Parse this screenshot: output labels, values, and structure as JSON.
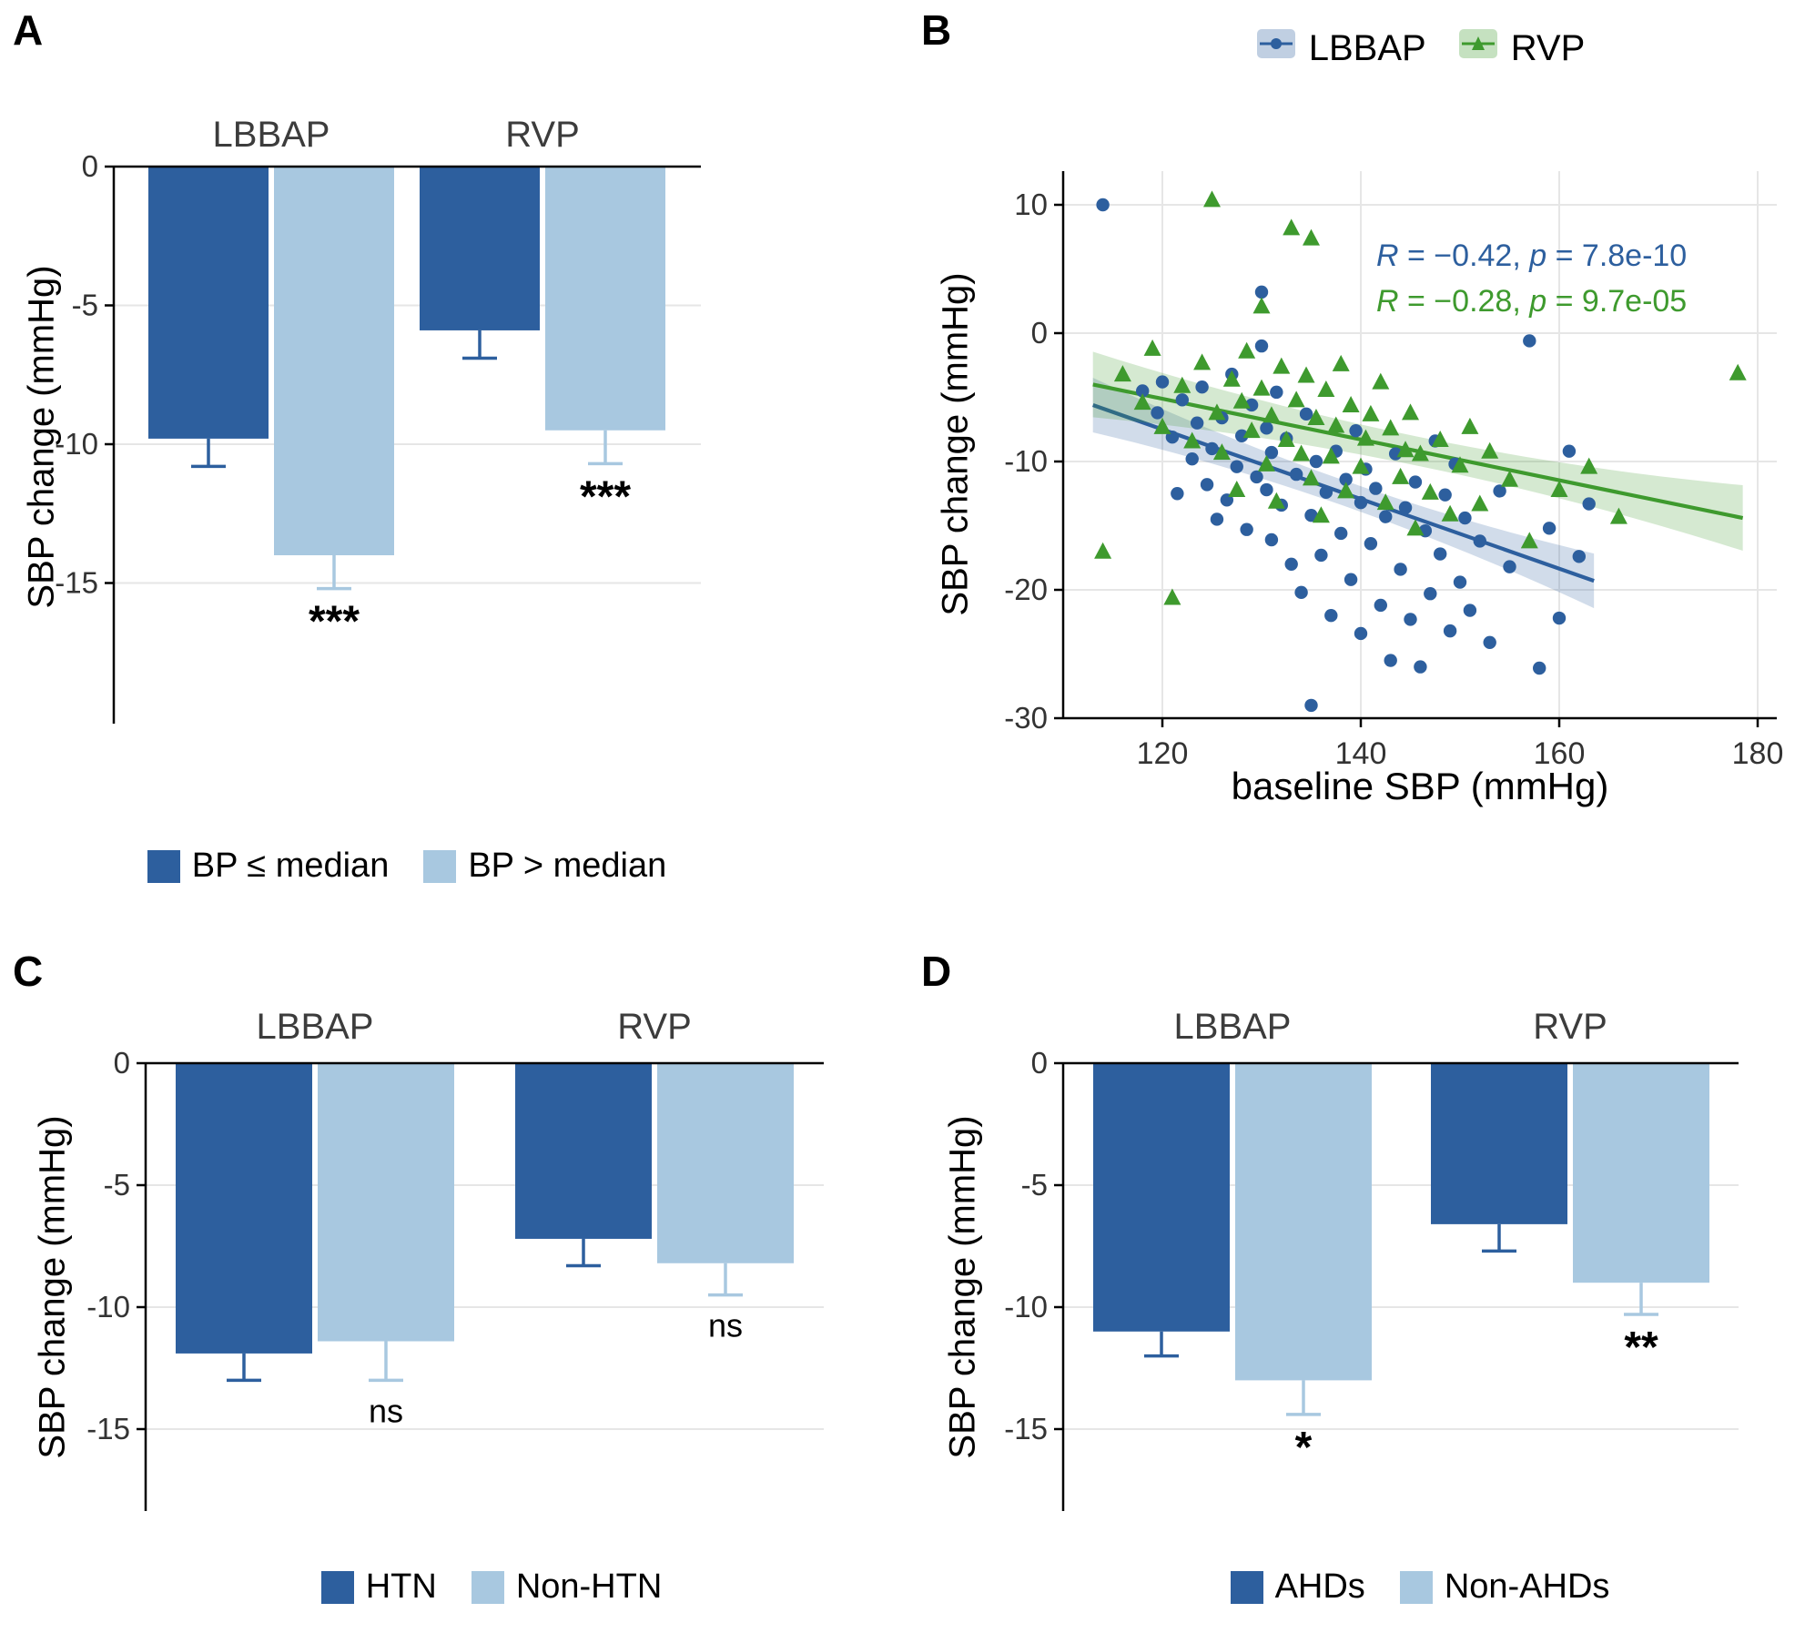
{
  "figure": {
    "colors": {
      "dark_blue": "#2D5F9E",
      "light_blue": "#A8C8E0",
      "green": "#3E9A2E",
      "grid": "#E6E6E6",
      "axis": "#000000",
      "facet_text": "#3C3C3C",
      "tick_text": "#333333"
    }
  },
  "chart_data": [
    {
      "type": "bar",
      "panel_label": "A",
      "ylabel": "SBP change (mmHg)",
      "ylim": [
        0,
        -20
      ],
      "yticks": [
        0,
        -5,
        -10,
        -15
      ],
      "groups": [
        "LBBAP",
        "RVP"
      ],
      "series": [
        {
          "name": "BP ≤ median",
          "color": "#2D5F9E"
        },
        {
          "name": "BP > median",
          "color": "#A8C8E0"
        }
      ],
      "values": [
        [
          -9.8,
          -14.0
        ],
        [
          -5.9,
          -9.5
        ]
      ],
      "errors": [
        [
          1.0,
          1.2
        ],
        [
          1.0,
          1.2
        ]
      ],
      "significance": [
        [
          null,
          "***"
        ],
        [
          null,
          "***"
        ]
      ]
    },
    {
      "type": "scatter",
      "panel_label": "B",
      "xlabel": "baseline SBP (mmHg)",
      "ylabel": "SBP change (mmHg)",
      "xlim": [
        110,
        182
      ],
      "ylim": [
        12.5,
        -30.5
      ],
      "xticks": [
        120,
        140,
        160,
        180
      ],
      "yticks": [
        10,
        0,
        -10,
        -20,
        -30
      ],
      "legend_position": "top",
      "series": [
        {
          "name": "LBBAP",
          "marker": "circle",
          "color": "#2D5F9E",
          "annotation": {
            "r_label": "R",
            "r_text": " = −0.42, ",
            "p_label": "p",
            "p_text": " = 7.8e-10"
          },
          "regression": {
            "x1": 113,
            "y1": -5.6,
            "x2": 163.5,
            "y2": -19.3
          },
          "band": {
            "base": 14,
            "amp": 16
          },
          "points": [
            [
              114,
              10
            ],
            [
              118,
              -4.5
            ],
            [
              119.5,
              -6.2
            ],
            [
              120,
              -3.8
            ],
            [
              121,
              -8.1
            ],
            [
              121.5,
              -12.5
            ],
            [
              122,
              -5.2
            ],
            [
              123,
              -9.8
            ],
            [
              123.5,
              -7
            ],
            [
              124,
              -4.2
            ],
            [
              124.5,
              -11.8
            ],
            [
              125,
              -9
            ],
            [
              125.5,
              -14.5
            ],
            [
              126,
              -6.6
            ],
            [
              126.5,
              -13
            ],
            [
              127,
              -3.2
            ],
            [
              127.5,
              -10.4
            ],
            [
              128,
              -8
            ],
            [
              128.5,
              -15.3
            ],
            [
              129,
              -5.6
            ],
            [
              129.5,
              -11.2
            ],
            [
              130,
              3.2
            ],
            [
              130,
              -1
            ],
            [
              130.5,
              -7.4
            ],
            [
              130.5,
              -12.2
            ],
            [
              131,
              -9.3
            ],
            [
              131,
              -16.1
            ],
            [
              131.5,
              -4.6
            ],
            [
              132,
              -13.4
            ],
            [
              132.5,
              -8.2
            ],
            [
              133,
              -18
            ],
            [
              133.5,
              -11
            ],
            [
              134,
              -20.2
            ],
            [
              134.5,
              -6.3
            ],
            [
              135,
              -14.2
            ],
            [
              135,
              -29
            ],
            [
              135.5,
              -10
            ],
            [
              136,
              -17.3
            ],
            [
              136.5,
              -12.4
            ],
            [
              137,
              -22
            ],
            [
              137.5,
              -9.2
            ],
            [
              138,
              -15.6
            ],
            [
              138.5,
              -11.4
            ],
            [
              139,
              -19.2
            ],
            [
              139.5,
              -7.6
            ],
            [
              140,
              -13.2
            ],
            [
              140,
              -23.4
            ],
            [
              140.5,
              -10.6
            ],
            [
              141,
              -16.4
            ],
            [
              141.5,
              -12.1
            ],
            [
              142,
              -21.2
            ],
            [
              142.5,
              -14.3
            ],
            [
              143,
              -25.5
            ],
            [
              143.5,
              -9.4
            ],
            [
              144,
              -18.4
            ],
            [
              144.5,
              -13.6
            ],
            [
              145,
              -22.3
            ],
            [
              145.5,
              -11.6
            ],
            [
              146,
              -26
            ],
            [
              146.5,
              -15.4
            ],
            [
              147,
              -20.3
            ],
            [
              147.5,
              -8.4
            ],
            [
              148,
              -17.2
            ],
            [
              148.5,
              -12.6
            ],
            [
              149,
              -23.2
            ],
            [
              149.5,
              -10.2
            ],
            [
              150,
              -19.4
            ],
            [
              150.5,
              -14.4
            ],
            [
              151,
              -21.6
            ],
            [
              152,
              -16.2
            ],
            [
              153,
              -24.1
            ],
            [
              154,
              -12.3
            ],
            [
              155,
              -18.2
            ],
            [
              157,
              -0.6
            ],
            [
              158,
              -26.1
            ],
            [
              159,
              -15.2
            ],
            [
              160,
              -22.2
            ],
            [
              161,
              -9.2
            ],
            [
              162,
              -17.4
            ],
            [
              163,
              -13.3
            ]
          ]
        },
        {
          "name": "RVP",
          "marker": "triangle",
          "color": "#3E9A2E",
          "annotation": {
            "r_label": "R",
            "r_text": " = −0.28, ",
            "p_label": "p",
            "p_text": " = 9.7e-05"
          },
          "regression": {
            "x1": 113,
            "y1": -4.0,
            "x2": 178.5,
            "y2": -14.4
          },
          "band": {
            "base": 16,
            "amp": 20
          },
          "points": [
            [
              114,
              -17
            ],
            [
              116,
              -3.2
            ],
            [
              118,
              -5.4
            ],
            [
              119,
              -1.2
            ],
            [
              120,
              -7.3
            ],
            [
              121,
              -20.6
            ],
            [
              122,
              -4.1
            ],
            [
              123,
              -8.4
            ],
            [
              124,
              -2.3
            ],
            [
              125,
              10.4
            ],
            [
              125.5,
              -6.2
            ],
            [
              126,
              -9.3
            ],
            [
              127,
              -3.6
            ],
            [
              127.5,
              -12.2
            ],
            [
              128,
              -5.3
            ],
            [
              128.5,
              -1.4
            ],
            [
              129,
              -7.6
            ],
            [
              130,
              2.1
            ],
            [
              130,
              -4.3
            ],
            [
              130.5,
              -10.2
            ],
            [
              131,
              -6.4
            ],
            [
              131.5,
              -13.1
            ],
            [
              132,
              -2.6
            ],
            [
              132.5,
              -8.3
            ],
            [
              133,
              8.2
            ],
            [
              133.5,
              -5.2
            ],
            [
              134,
              -9.4
            ],
            [
              134.5,
              -3.3
            ],
            [
              135,
              7.4
            ],
            [
              135,
              -11.3
            ],
            [
              135.5,
              -6.6
            ],
            [
              136,
              -14.2
            ],
            [
              136.5,
              -4.4
            ],
            [
              137,
              -9.6
            ],
            [
              137.5,
              -7.2
            ],
            [
              138,
              -2.4
            ],
            [
              138.5,
              -12.3
            ],
            [
              139,
              -5.6
            ],
            [
              140,
              -10.4
            ],
            [
              140.5,
              -8.2
            ],
            [
              141,
              -6.3
            ],
            [
              142,
              -3.8
            ],
            [
              142.5,
              -13.2
            ],
            [
              143,
              -7.4
            ],
            [
              144,
              -11.2
            ],
            [
              144.5,
              -9.1
            ],
            [
              145,
              -6.2
            ],
            [
              145.5,
              -15.2
            ],
            [
              146,
              -9.4
            ],
            [
              147,
              -12.4
            ],
            [
              148,
              -8.3
            ],
            [
              149,
              -14.1
            ],
            [
              150,
              -10.3
            ],
            [
              151,
              -7.3
            ],
            [
              152,
              -13.3
            ],
            [
              153,
              -9.2
            ],
            [
              155,
              -11.4
            ],
            [
              157,
              -16.2
            ],
            [
              160,
              -12.2
            ],
            [
              163,
              -10.4
            ],
            [
              166,
              -14.3
            ],
            [
              178,
              -3.1
            ]
          ]
        }
      ]
    },
    {
      "type": "bar",
      "panel_label": "C",
      "ylabel": "SBP change (mmHg)",
      "ylim": [
        0,
        -18.5
      ],
      "yticks": [
        0,
        -5,
        -10,
        -15
      ],
      "groups": [
        "LBBAP",
        "RVP"
      ],
      "series": [
        {
          "name": "HTN",
          "color": "#2D5F9E"
        },
        {
          "name": "Non-HTN",
          "color": "#A8C8E0"
        }
      ],
      "values": [
        [
          -11.9,
          -11.4
        ],
        [
          -7.2,
          -8.2
        ]
      ],
      "errors": [
        [
          1.1,
          1.6
        ],
        [
          1.1,
          1.3
        ]
      ],
      "significance": [
        [
          null,
          "ns"
        ],
        [
          null,
          "ns"
        ]
      ]
    },
    {
      "type": "bar",
      "panel_label": "D",
      "ylabel": "SBP change (mmHg)",
      "ylim": [
        0,
        -18.5
      ],
      "yticks": [
        0,
        -5,
        -10,
        -15
      ],
      "groups": [
        "LBBAP",
        "RVP"
      ],
      "series": [
        {
          "name": "AHDs",
          "color": "#2D5F9E"
        },
        {
          "name": "Non-AHDs",
          "color": "#A8C8E0"
        }
      ],
      "values": [
        [
          -11.0,
          -13.0
        ],
        [
          -6.6,
          -9.0
        ]
      ],
      "errors": [
        [
          1.0,
          1.4
        ],
        [
          1.1,
          1.3
        ]
      ],
      "significance": [
        [
          null,
          "*"
        ],
        [
          null,
          "**"
        ]
      ]
    }
  ]
}
